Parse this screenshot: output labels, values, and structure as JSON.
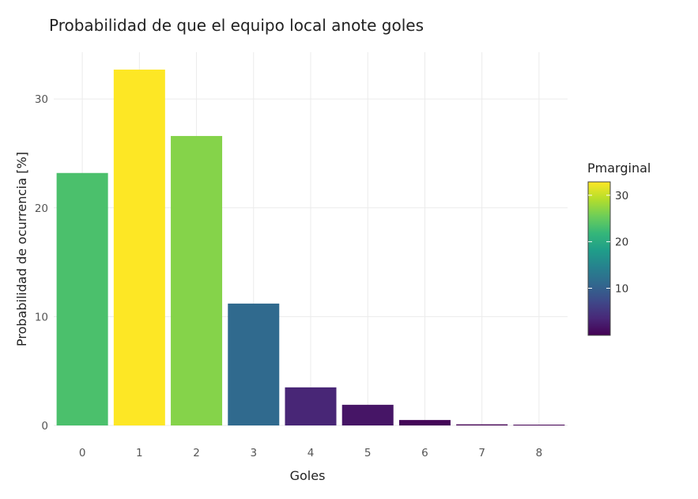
{
  "chart_data": {
    "type": "bar",
    "title": "Probabilidad de que el equipo local anote goles",
    "xlabel": "Goles",
    "ylabel": "Probabilidad de ocurrencia [%]",
    "categories": [
      "0",
      "1",
      "2",
      "3",
      "4",
      "5",
      "6",
      "7",
      "8"
    ],
    "values": [
      23.2,
      32.7,
      26.6,
      11.2,
      3.5,
      1.9,
      0.5,
      0.1,
      0.05
    ],
    "ylim": [
      0,
      34.3
    ],
    "yticks": [
      "0",
      "10",
      "20",
      "30"
    ],
    "grid": true,
    "colorbar": {
      "title": "Pmarginal",
      "ticks": [
        "10",
        "20",
        "30"
      ],
      "range": [
        0.05,
        32.7
      ],
      "colorscale": "viridis"
    },
    "legend_position": "right"
  },
  "colors": {
    "viridis": [
      "#440154",
      "#482878",
      "#3e4989",
      "#31688e",
      "#26828e",
      "#1f9e89",
      "#35b779",
      "#6ece58",
      "#b5de2b",
      "#fde725"
    ],
    "grid": "#ebebeb",
    "background": "#ffffff"
  }
}
